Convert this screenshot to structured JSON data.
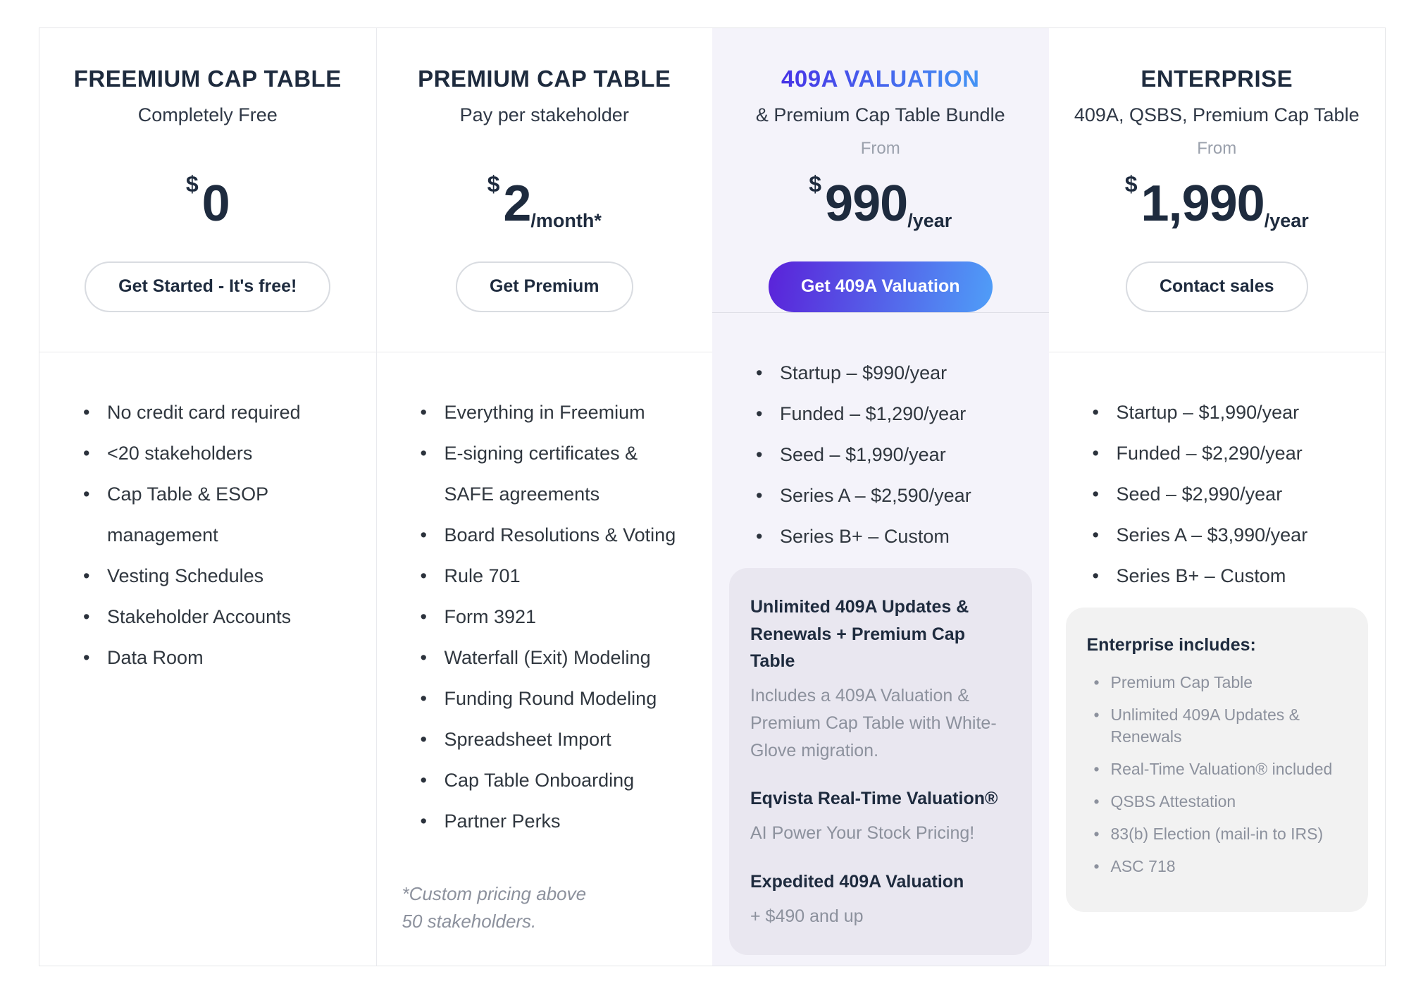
{
  "colors": {
    "navy": "#1e2b3e",
    "border": "#e5e6e9",
    "highlight-bg": "#f4f3fa",
    "accent-start": "#4733e6",
    "accent-end": "#4494f4",
    "button-start": "#5a22d9",
    "button-end": "#4f9ef8",
    "box-lavender": "#e9e7f0",
    "box-gray": "#f2f2f2"
  },
  "plans": [
    {
      "title": "FREEMIUM CAP TABLE",
      "subtitle": "Completely Free",
      "from_label": "",
      "currency": "$",
      "price": "0",
      "period": "",
      "cta": "Get Started - It's free!",
      "features": [
        "No credit card required",
        "<20 stakeholders",
        "Cap Table & ESOP management",
        "Vesting Schedules",
        "Stakeholder Accounts",
        "Data Room"
      ]
    },
    {
      "title": "PREMIUM CAP TABLE",
      "subtitle": "Pay per stakeholder",
      "from_label": "",
      "currency": "$",
      "price": "2",
      "period": "/month*",
      "cta": "Get Premium",
      "features": [
        "Everything in Freemium",
        "E-signing certificates & SAFE agreements",
        "Board Resolutions & Voting",
        "Rule 701",
        "Form 3921",
        "Waterfall (Exit) Modeling",
        "Funding Round Modeling",
        "Spreadsheet Import",
        "Cap Table Onboarding",
        "Partner Perks"
      ],
      "footnote_line1": "*Custom pricing above",
      "footnote_line2": "50 stakeholders."
    },
    {
      "title": "409A VALUATION",
      "subtitle": "& Premium Cap Table Bundle",
      "from_label": "From",
      "currency": "$",
      "price": "990",
      "period": "/year",
      "cta": "Get 409A Valuation",
      "features": [
        "Startup – $990/year",
        "Funded – $1,290/year",
        "Seed – $1,990/year",
        "Series A – $2,590/year",
        "Series B+ – Custom"
      ],
      "info_sections": [
        {
          "heading": "Unlimited 409A Updates & Renewals + Premium Cap Table",
          "body": "Includes a 409A Valuation & Premium Cap Table with White-Glove migration."
        },
        {
          "heading": "Eqvista Real-Time Valuation®",
          "body": "AI Power Your Stock Pricing!"
        },
        {
          "heading": "Expedited 409A Valuation",
          "body": "+ $490 and up"
        }
      ]
    },
    {
      "title": "ENTERPRISE",
      "subtitle": "409A, QSBS, Premium Cap Table",
      "from_label": "From",
      "currency": "$",
      "price": "1,990",
      "period": "/year",
      "cta": "Contact sales",
      "features": [
        "Startup – $1,990/year",
        "Funded – $2,290/year",
        "Seed – $2,990/year",
        "Series A – $3,990/year",
        "Series B+ – Custom"
      ],
      "includes_heading": "Enterprise includes:",
      "includes": [
        "Premium Cap Table",
        "Unlimited 409A Updates & Renewals",
        "Real-Time Valuation® included",
        "QSBS Attestation",
        "83(b) Election (mail-in to IRS)",
        "ASC 718"
      ]
    }
  ]
}
